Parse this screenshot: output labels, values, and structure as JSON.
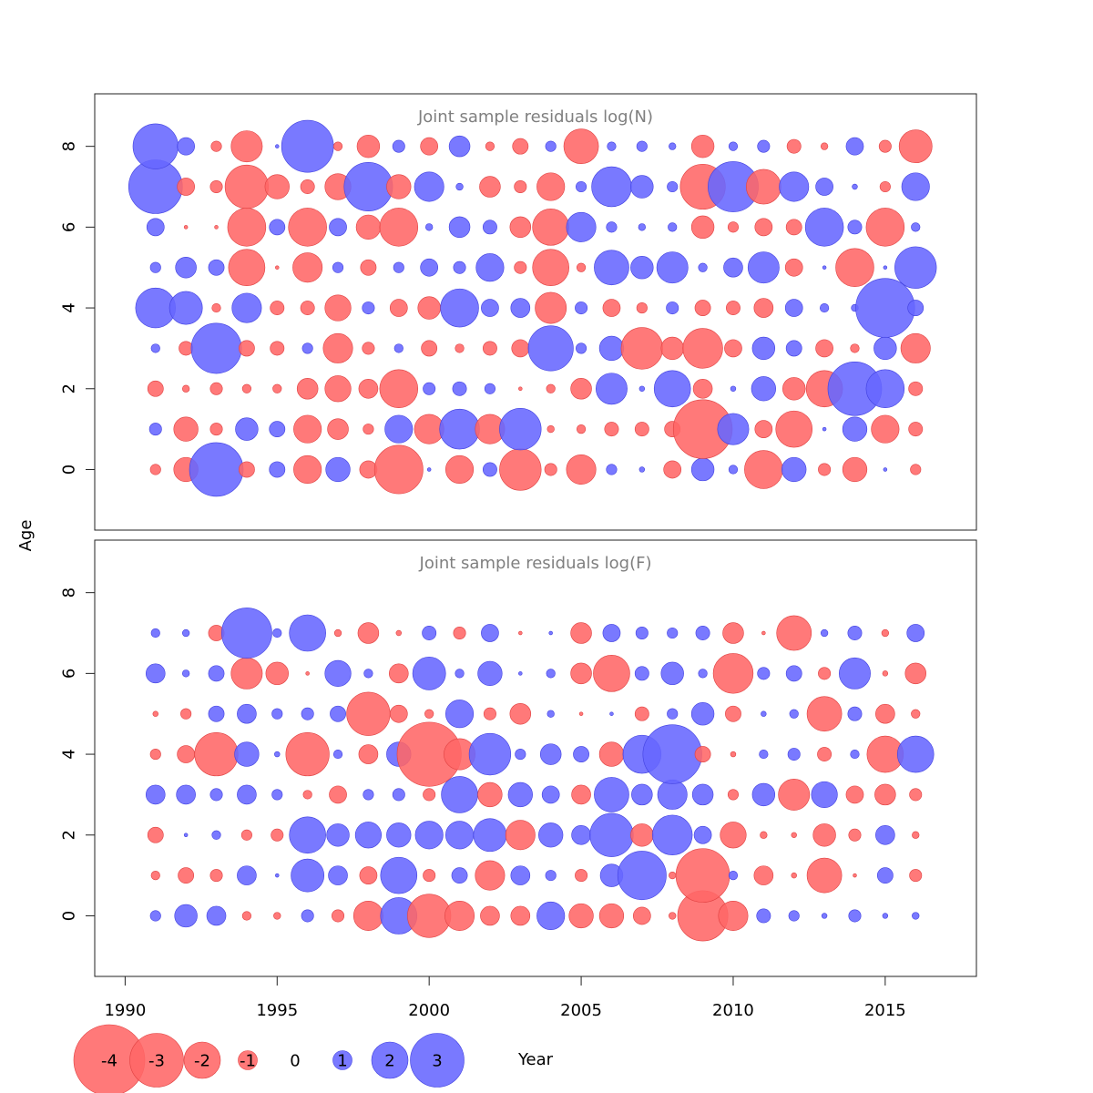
{
  "chart_data": {
    "type": "scatter",
    "xlabel": "Year",
    "ylabel": "Age",
    "xlim": [
      1989,
      2018
    ],
    "x_ticks": [
      "1990",
      "1995",
      "2000",
      "2005",
      "2010",
      "2015"
    ],
    "y_ticks": [
      "0",
      "2",
      "4",
      "6",
      "8"
    ],
    "legend": {
      "placement": "bottom-left",
      "values": [
        "-4",
        "-3",
        "-2",
        "-1",
        "0",
        "1",
        "2",
        "3"
      ]
    },
    "colors": {
      "negative": "#ff6666",
      "positive": "#6666ff",
      "negative_stroke": "#e04040",
      "positive_stroke": "#4040e0"
    },
    "years": [
      1991,
      1992,
      1993,
      1994,
      1995,
      1996,
      1997,
      1998,
      1999,
      2000,
      2001,
      2002,
      2003,
      2004,
      2005,
      2006,
      2007,
      2008,
      2009,
      2010,
      2011,
      2012,
      2013,
      2014,
      2015,
      2016
    ],
    "panels": [
      {
        "title": "Joint sample residuals log(N)",
        "ylim": [
          -1.5,
          9.3
        ],
        "ages": [
          0,
          1,
          2,
          3,
          4,
          5,
          6,
          7,
          8
        ],
        "residuals": [
          [
            -0.5,
            -1.3,
            3.0,
            -0.8,
            0.8,
            -1.5,
            1.3,
            -0.9,
            -2.7,
            0.1,
            -1.5,
            0.7,
            -2.3,
            -0.6,
            -1.6,
            0.5,
            0.2,
            -0.9,
            1.2,
            0.4,
            -2.1,
            1.3,
            -0.6,
            -1.3,
            0.1,
            -0.5
          ],
          [
            0.6,
            -1.3,
            -0.6,
            1.2,
            0.8,
            -1.5,
            -1.1,
            -0.5,
            1.5,
            -1.6,
            2.2,
            -1.6,
            2.3,
            -0.3,
            -0.4,
            -0.7,
            -0.7,
            -0.8,
            -3.3,
            1.7,
            -0.9,
            -2.0,
            0.1,
            1.3,
            -1.5,
            -0.7
          ],
          [
            -0.8,
            -0.3,
            -0.6,
            -0.4,
            -0.4,
            -1.1,
            -1.4,
            -1.0,
            -2.1,
            0.6,
            0.7,
            0.5,
            -0.1,
            -0.4,
            -1.1,
            1.7,
            0.2,
            2.0,
            -1.0,
            0.2,
            1.3,
            -1.2,
            -2.0,
            3.0,
            2.1,
            -0.7
          ],
          [
            0.4,
            -0.7,
            2.8,
            -0.8,
            -0.7,
            0.5,
            -1.6,
            -0.6,
            0.4,
            -0.8,
            -0.4,
            -0.7,
            -0.9,
            2.5,
            0.5,
            1.3,
            -2.3,
            -1.2,
            -2.2,
            -0.9,
            1.2,
            0.8,
            -0.9,
            -0.4,
            1.2,
            -1.6
          ],
          [
            2.2,
            1.8,
            -0.4,
            1.6,
            -0.7,
            -0.7,
            -1.4,
            0.6,
            -0.9,
            -1.2,
            2.1,
            0.9,
            1.0,
            -1.7,
            0.6,
            -0.9,
            -0.5,
            0.6,
            -0.8,
            -0.7,
            -1.0,
            0.9,
            0.4,
            0.3,
            3.3,
            0.8
          ],
          [
            0.5,
            1.1,
            0.8,
            -2.0,
            -0.1,
            -1.6,
            0.5,
            -0.8,
            0.5,
            0.9,
            0.6,
            1.5,
            -0.6,
            -2.0,
            -0.4,
            1.9,
            1.2,
            1.7,
            0.4,
            1.0,
            1.7,
            -0.9,
            0.1,
            -2.1,
            0.1,
            2.3
          ],
          [
            0.9,
            -0.1,
            -0.1,
            -2.1,
            0.8,
            -2.1,
            0.9,
            -1.3,
            -2.1,
            0.3,
            1.1,
            0.7,
            -1.1,
            -2.0,
            1.6,
            0.5,
            0.3,
            0.4,
            -1.2,
            -0.5,
            -0.9,
            -0.8,
            2.1,
            0.7,
            -2.1,
            0.4
          ],
          [
            3.0,
            -0.9,
            -0.6,
            -2.4,
            -1.3,
            -0.7,
            -1.4,
            2.7,
            -1.3,
            1.6,
            0.3,
            -1.1,
            -0.6,
            -1.5,
            0.5,
            2.2,
            1.2,
            0.5,
            -2.5,
            2.8,
            -1.9,
            1.6,
            0.9,
            0.2,
            -0.5,
            1.5
          ],
          [
            2.5,
            0.9,
            -0.5,
            -1.7,
            0.1,
            2.9,
            -0.4,
            -1.2,
            0.6,
            -0.9,
            1.1,
            -0.4,
            -0.8,
            0.5,
            -1.9,
            0.4,
            0.5,
            0.3,
            -1.2,
            0.4,
            0.6,
            -0.7,
            -0.3,
            0.9,
            -0.6,
            -1.8
          ]
        ]
      },
      {
        "title": "Joint sample residuals log(F)",
        "ylim": [
          -1.5,
          9.3
        ],
        "ages": [
          0,
          1,
          2,
          3,
          4,
          5,
          6,
          7
        ],
        "residuals": [
          [
            0.5,
            1.2,
            1.0,
            -0.4,
            -0.3,
            0.6,
            -0.6,
            -1.6,
            2.0,
            -2.4,
            -1.6,
            -1.0,
            -1.0,
            1.5,
            -1.3,
            -1.3,
            -0.9,
            -0.3,
            -2.8,
            -1.6,
            0.7,
            0.5,
            0.2,
            0.6,
            0.2,
            0.3
          ],
          [
            -0.4,
            -0.8,
            -0.6,
            1.0,
            0.1,
            1.8,
            1.0,
            -0.9,
            2.0,
            -0.6,
            0.8,
            -1.6,
            1.0,
            0.5,
            -0.6,
            1.2,
            2.7,
            -0.3,
            -3.0,
            0.4,
            -1.0,
            -0.2,
            -1.9,
            -0.1,
            0.8,
            -0.6
          ],
          [
            -0.8,
            0.1,
            0.4,
            -0.5,
            -0.6,
            2.0,
            1.2,
            1.4,
            1.3,
            1.5,
            1.5,
            1.8,
            -1.6,
            1.3,
            1.0,
            2.4,
            -1.2,
            2.2,
            0.9,
            -1.4,
            -0.3,
            -0.2,
            -1.2,
            -0.6,
            1.0,
            -0.3
          ],
          [
            1.0,
            1.0,
            0.6,
            1.0,
            0.5,
            -0.4,
            -0.9,
            0.5,
            0.6,
            -0.6,
            2.0,
            -1.3,
            1.3,
            0.9,
            -1.0,
            1.9,
            1.1,
            1.6,
            1.1,
            -0.5,
            1.2,
            -1.7,
            1.4,
            -0.9,
            -1.1,
            -0.6
          ],
          [
            -0.5,
            -0.9,
            -2.4,
            1.3,
            0.2,
            -2.4,
            0.4,
            -1.0,
            1.3,
            -3.6,
            -1.7,
            2.3,
            0.5,
            1.1,
            0.8,
            -1.3,
            2.1,
            3.3,
            -0.8,
            -0.2,
            0.4,
            0.6,
            -0.7,
            0.4,
            -2.0,
            2.0
          ],
          [
            -0.2,
            -0.5,
            0.8,
            1.0,
            0.5,
            0.6,
            0.8,
            -2.4,
            -0.9,
            -0.4,
            1.5,
            -0.6,
            -1.1,
            0.3,
            -0.1,
            0.1,
            -0.7,
            0.5,
            1.2,
            -0.8,
            0.2,
            0.4,
            -1.9,
            0.7,
            -1.0,
            -0.4
          ],
          [
            1.0,
            0.3,
            0.8,
            -1.7,
            -1.2,
            -0.1,
            1.4,
            0.4,
            -1.0,
            1.8,
            0.4,
            1.3,
            0.1,
            0.4,
            -1.1,
            -2.0,
            0.7,
            1.2,
            0.4,
            -2.2,
            0.6,
            0.8,
            -0.6,
            1.7,
            -0.2,
            -1.1
          ],
          [
            0.4,
            0.3,
            -0.8,
            2.8,
            0.4,
            2.0,
            -0.3,
            -1.1,
            -0.2,
            0.7,
            -0.6,
            0.9,
            -0.1,
            0.1,
            -1.1,
            0.9,
            0.6,
            0.5,
            0.7,
            -1.1,
            -0.1,
            -1.9,
            0.3,
            0.7,
            -0.3,
            0.9
          ]
        ]
      }
    ]
  }
}
